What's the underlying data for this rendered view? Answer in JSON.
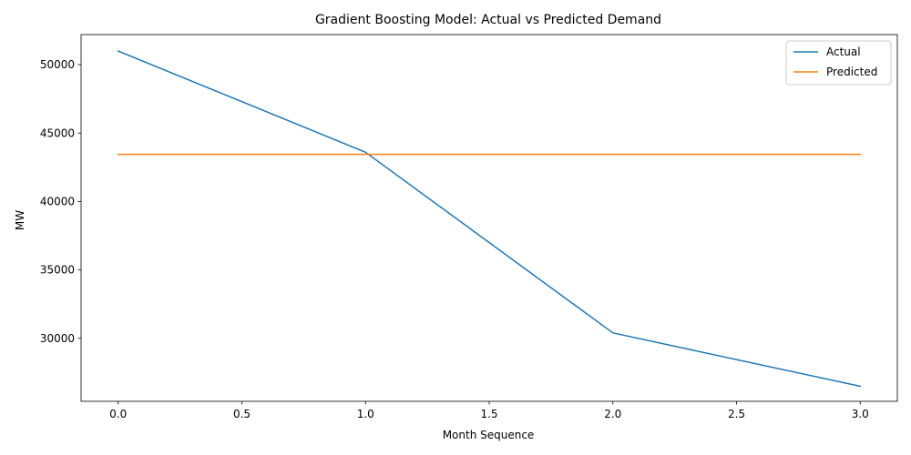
{
  "chart_data": {
    "type": "line",
    "title": "Gradient Boosting Model: Actual vs Predicted Demand",
    "xlabel": "Month Sequence",
    "ylabel": "MW",
    "x": [
      0,
      1,
      2,
      3
    ],
    "xlim": [
      -0.15,
      3.15
    ],
    "ylim": [
      25400,
      52200
    ],
    "xticks": [
      0.0,
      0.5,
      1.0,
      1.5,
      2.0,
      2.5,
      3.0
    ],
    "xtick_labels": [
      "0.0",
      "0.5",
      "1.0",
      "1.5",
      "2.0",
      "2.5",
      "3.0"
    ],
    "yticks": [
      30000,
      35000,
      40000,
      45000,
      50000
    ],
    "ytick_labels": [
      "30000",
      "35000",
      "40000",
      "45000",
      "50000"
    ],
    "grid": false,
    "legend_position": "top-right",
    "series": [
      {
        "name": "Actual",
        "color": "#1f77b4",
        "values": [
          51000,
          43600,
          30400,
          26500
        ]
      },
      {
        "name": "Predicted",
        "color": "#ff7f0e",
        "values": [
          43450,
          43450,
          43450,
          43450
        ]
      }
    ]
  }
}
